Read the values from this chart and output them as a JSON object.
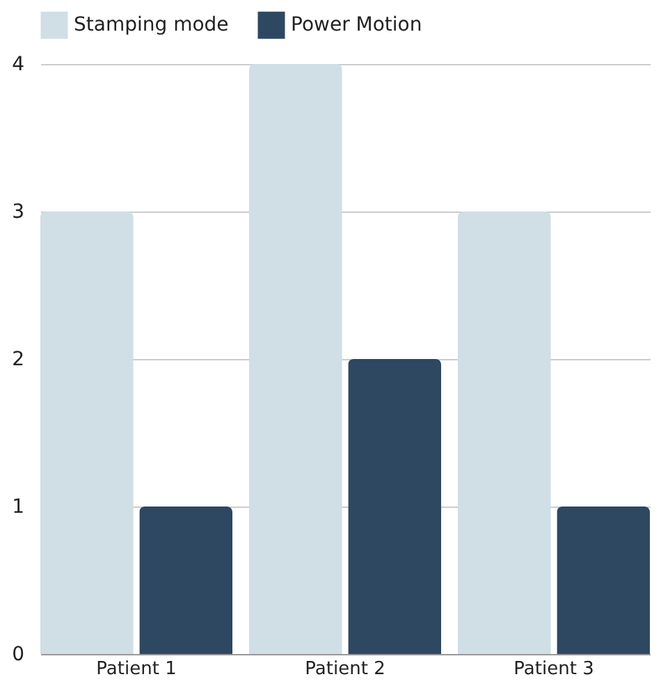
{
  "chart_data": {
    "type": "bar",
    "categories": [
      "Patient 1",
      "Patient 2",
      "Patient 3"
    ],
    "series": [
      {
        "name": "Stamping mode",
        "color": "#d0dee6",
        "values": [
          3,
          4,
          3
        ]
      },
      {
        "name": "Power Motion",
        "color": "#2e4862",
        "values": [
          1,
          2,
          1
        ]
      }
    ],
    "ylim": [
      0,
      4
    ],
    "yticks": [
      0,
      1,
      2,
      3,
      4
    ],
    "grid": "y",
    "legend": "top"
  }
}
